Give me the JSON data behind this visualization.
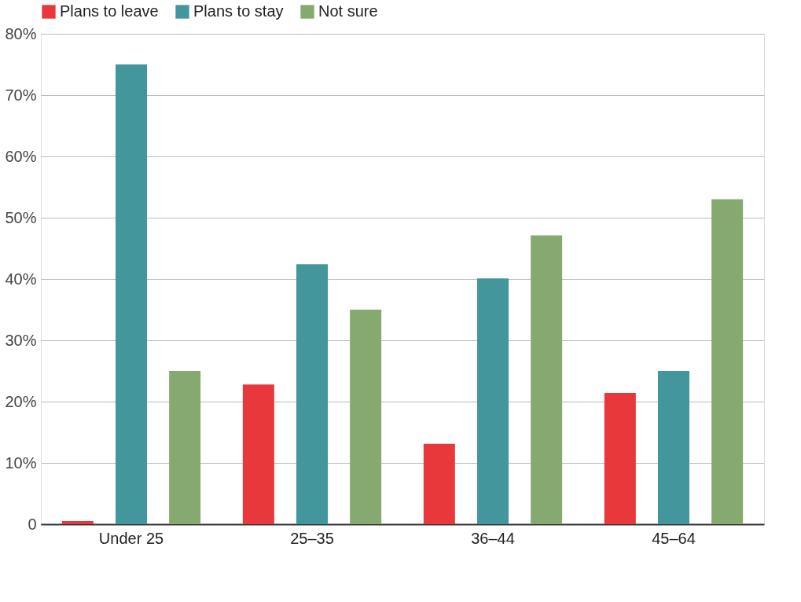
{
  "chart_data": {
    "type": "bar",
    "categories": [
      "Under 25",
      "25–35",
      "36–44",
      "45–64"
    ],
    "series": [
      {
        "name": "Plans to leave",
        "color": "#e8383b",
        "values": [
          0.5,
          22.8,
          13.1,
          21.4
        ]
      },
      {
        "name": "Plans to stay",
        "color": "#43969b",
        "values": [
          75,
          42.4,
          40.1,
          25
        ]
      },
      {
        "name": "Not sure",
        "color": "#86a970",
        "values": [
          25,
          35,
          47.1,
          53
        ]
      }
    ],
    "ylim": [
      0,
      80
    ],
    "yticks": [
      {
        "value": 0,
        "label": "0"
      },
      {
        "value": 10,
        "label": "10%"
      },
      {
        "value": 20,
        "label": "20%"
      },
      {
        "value": 30,
        "label": "30%"
      },
      {
        "value": 40,
        "label": "40%"
      },
      {
        "value": 50,
        "label": "50%"
      },
      {
        "value": 60,
        "label": "60%"
      },
      {
        "value": 70,
        "label": "70%"
      },
      {
        "value": 80,
        "label": "80%"
      }
    ],
    "grid": "y",
    "legend": "top"
  }
}
